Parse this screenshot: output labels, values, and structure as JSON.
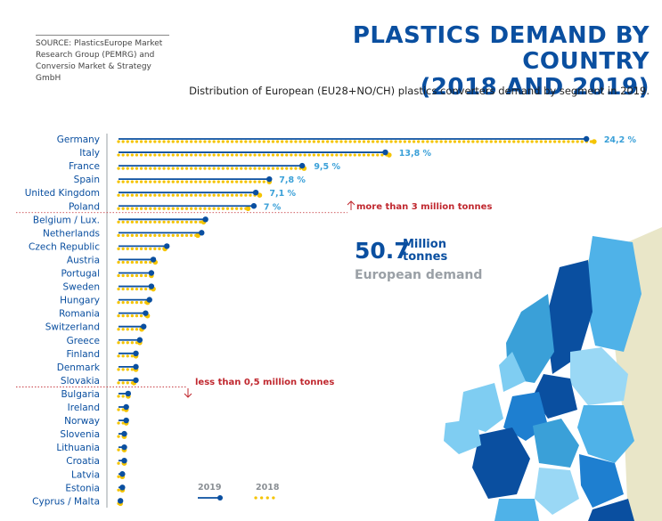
{
  "header": {
    "title_line1": "PLASTICS DEMAND BY COUNTRY",
    "title_line2": "(2018 AND 2019)",
    "subtitle": "Distribution of European (EU28+NO/CH) plastics converters demand by segment in 2019.",
    "source": "SOURCE: PlasticsEurope Market Research Group (PEMRG) and Conversio Market & Strategy GmbH"
  },
  "summary": {
    "value": "50.7",
    "unit": "Million tonnes",
    "label": "European demand"
  },
  "thresholds": {
    "upper": "more than 3 million tonnes",
    "lower": "less than 0,5 million tonnes"
  },
  "colors": {
    "series_2019": "#0a4fa0",
    "series_2018": "#f5c400",
    "label": "#0a4fa0",
    "value_label": "#3aa0d8",
    "threshold": "#c0282f"
  },
  "chart_data": {
    "type": "dot-line",
    "legend": [
      "2019",
      "2018"
    ],
    "categories": [
      "Germany",
      "Italy",
      "France",
      "Spain",
      "United Kingdom",
      "Poland",
      "Belgium / Lux.",
      "Netherlands",
      "Czech Republic",
      "Austria",
      "Portugal",
      "Sweden",
      "Hungary",
      "Romania",
      "Switzerland",
      "Greece",
      "Finland",
      "Denmark",
      "Slovakia",
      "Bulgaria",
      "Ireland",
      "Norway",
      "Slovenia",
      "Lithuania",
      "Croatia",
      "Latvia",
      "Estonia",
      "Cyprus / Malta"
    ],
    "value_labels": [
      "24,2 %",
      "13,8 %",
      "9,5 %",
      "7,8 %",
      "7,1 %",
      "7 %",
      "",
      "",
      "",
      "",
      "",
      "",
      "",
      "",
      "",
      "",
      "",
      "",
      "",
      "",
      "",
      "",
      "",
      "",
      "",
      "",
      "",
      ""
    ],
    "series": [
      {
        "name": "2019",
        "values": [
          24.2,
          13.8,
          9.5,
          7.8,
          7.1,
          7.0,
          4.5,
          4.3,
          2.5,
          1.8,
          1.7,
          1.7,
          1.6,
          1.4,
          1.3,
          1.1,
          0.9,
          0.9,
          0.9,
          0.5,
          0.4,
          0.4,
          0.3,
          0.3,
          0.3,
          0.2,
          0.2,
          0.1
        ]
      },
      {
        "name": "2018",
        "values": [
          24.6,
          14.0,
          9.6,
          7.8,
          7.3,
          6.7,
          4.4,
          4.1,
          2.4,
          1.9,
          1.7,
          1.8,
          1.5,
          1.5,
          1.2,
          1.1,
          0.9,
          0.9,
          0.8,
          0.5,
          0.4,
          0.4,
          0.3,
          0.3,
          0.3,
          0.2,
          0.2,
          0.1
        ]
      }
    ],
    "xlim": [
      0,
      25
    ]
  }
}
